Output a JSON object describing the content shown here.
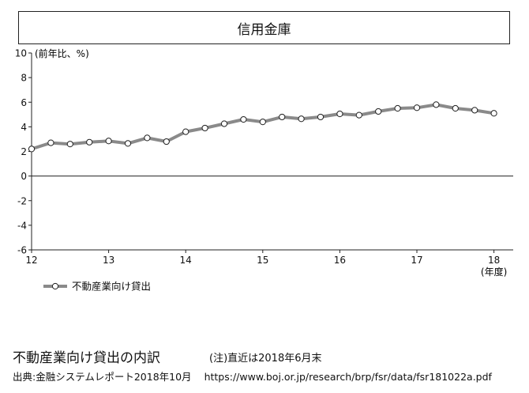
{
  "chart_data": {
    "type": "line",
    "title": "信用金庫",
    "ylabel": "(前年比、%)",
    "xlabel": "(年度)",
    "ylim": [
      -6,
      10
    ],
    "yticks": [
      -6,
      -4,
      -2,
      0,
      2,
      4,
      6,
      8,
      10
    ],
    "xlim": [
      12,
      18.25
    ],
    "xticks": [
      12,
      13,
      14,
      15,
      16,
      17,
      18
    ],
    "grid": false,
    "legend_position": "bottom-left",
    "series": [
      {
        "name": "不動産業向け貸出",
        "color": "#8a8a8a",
        "x": [
          12,
          12.25,
          12.5,
          12.75,
          13,
          13.25,
          13.5,
          13.75,
          14,
          14.25,
          14.5,
          14.75,
          15,
          15.25,
          15.5,
          15.75,
          16,
          16.25,
          16.5,
          16.75,
          17,
          17.25,
          17.5,
          17.75,
          18
        ],
        "values": [
          2.2,
          2.7,
          2.6,
          2.75,
          2.85,
          2.65,
          3.1,
          2.8,
          3.6,
          3.9,
          4.25,
          4.6,
          4.4,
          4.8,
          4.65,
          4.8,
          5.05,
          4.95,
          5.25,
          5.5,
          5.55,
          5.8,
          5.5,
          5.35,
          5.1
        ]
      }
    ]
  },
  "caption": {
    "title": "不動産業向け貸出の内訳",
    "note": "(注)直近は2018年6月末",
    "source": "出典:金融システムレポート2018年10月",
    "url": "https://www.boj.or.jp/research/brp/fsr/data/fsr181022a.pdf"
  }
}
